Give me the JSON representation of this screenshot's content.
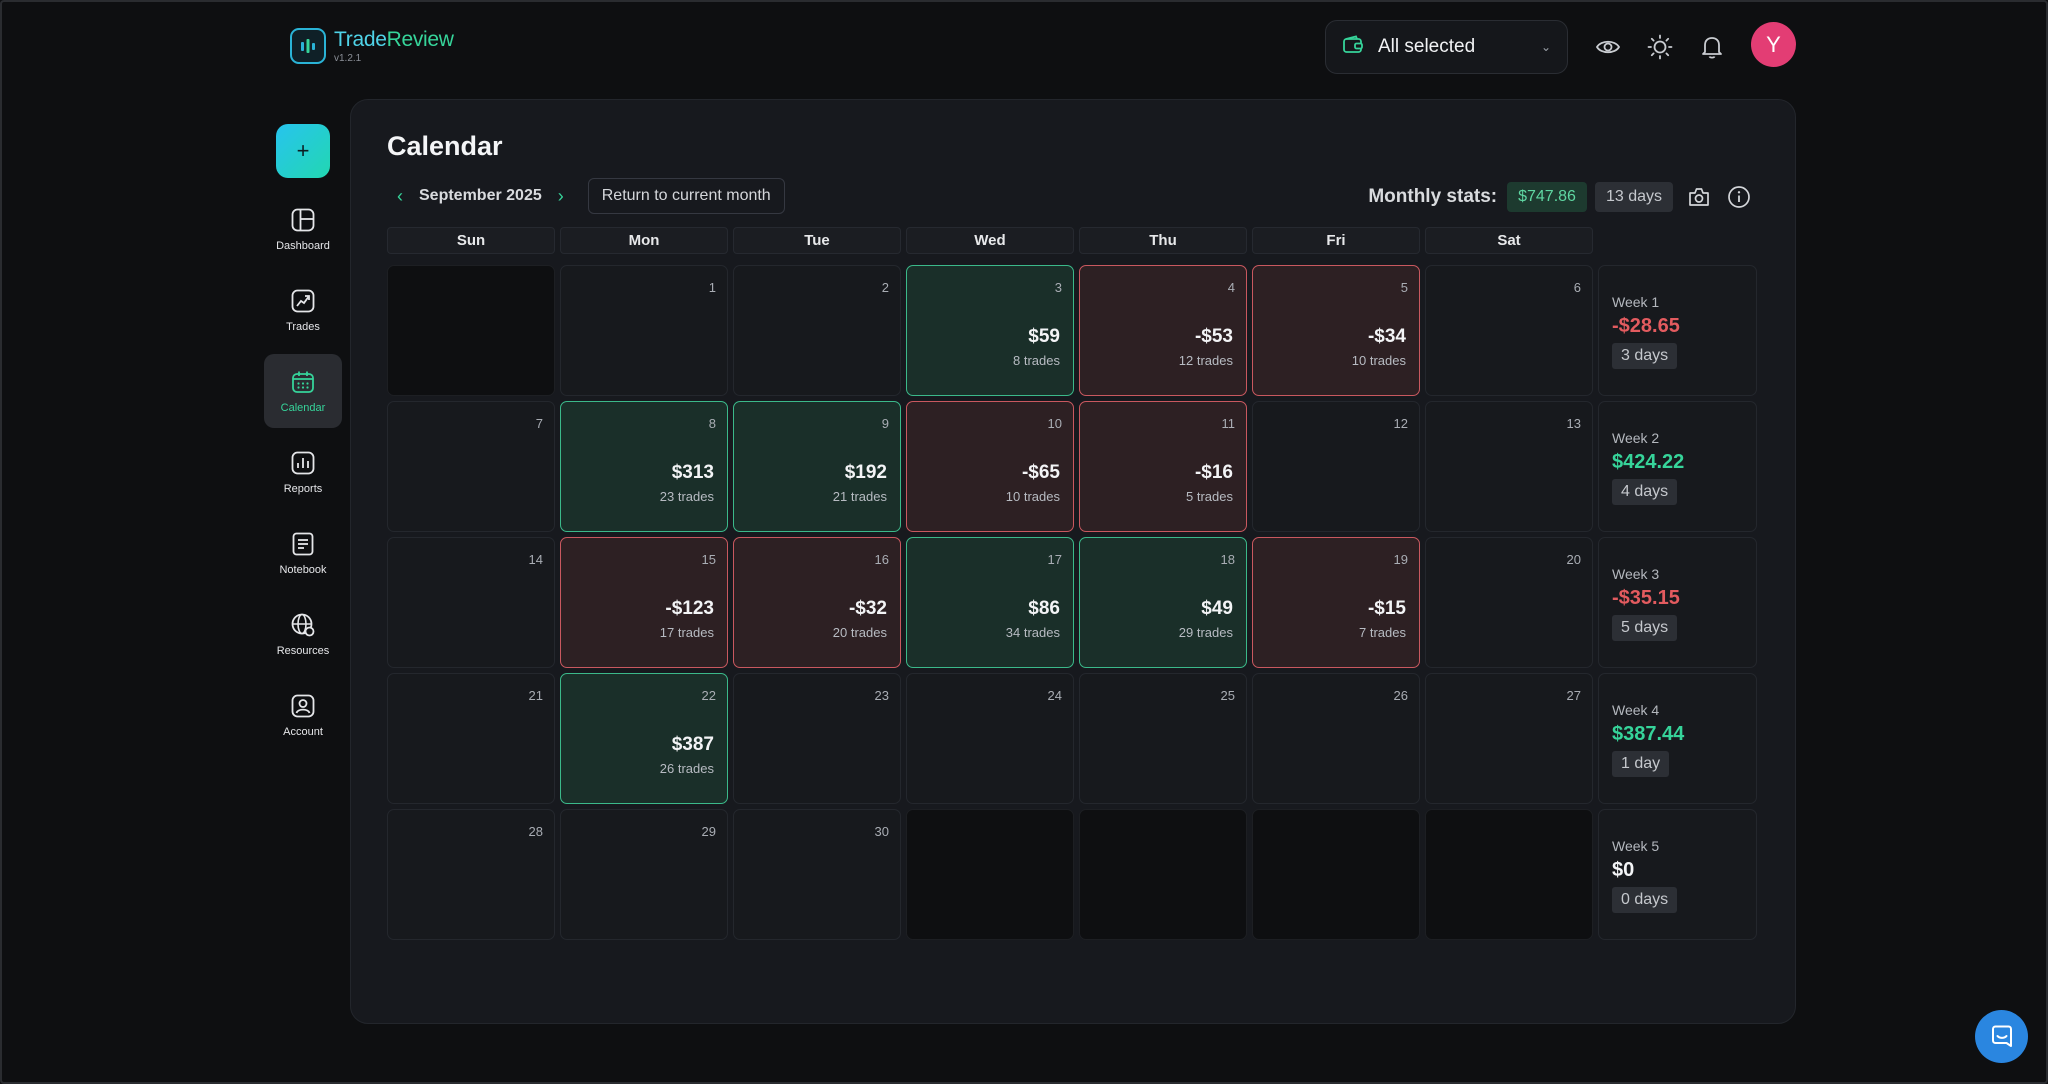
{
  "app": {
    "name_part1": "Trade",
    "name_part2": "Review",
    "version": "v1.2.1"
  },
  "header": {
    "account_select": "All selected",
    "avatar_initial": "Y"
  },
  "sidebar": {
    "new_label": "+",
    "items": [
      {
        "label": "Dashboard",
        "icon": "dashboard-icon"
      },
      {
        "label": "Trades",
        "icon": "trades-icon"
      },
      {
        "label": "Calendar",
        "icon": "calendar-icon",
        "active": true
      },
      {
        "label": "Reports",
        "icon": "reports-icon"
      },
      {
        "label": "Notebook",
        "icon": "notebook-icon"
      },
      {
        "label": "Resources",
        "icon": "resources-icon"
      },
      {
        "label": "Account",
        "icon": "account-icon"
      }
    ]
  },
  "calendar": {
    "title": "Calendar",
    "month": "September 2025",
    "return_label": "Return to current month",
    "monthly_stats_label": "Monthly stats:",
    "monthly_pnl": "$747.86",
    "monthly_days": "13 days",
    "days_of_week": [
      "Sun",
      "Mon",
      "Tue",
      "Wed",
      "Thu",
      "Fri",
      "Sat"
    ],
    "weeks": [
      {
        "days": [
          {
            "day": "",
            "type": "empty"
          },
          {
            "day": "1",
            "type": "neutral"
          },
          {
            "day": "2",
            "type": "neutral"
          },
          {
            "day": "3",
            "type": "green",
            "pnl": "$59",
            "trades": "8 trades"
          },
          {
            "day": "4",
            "type": "red",
            "pnl": "-$53",
            "trades": "12 trades"
          },
          {
            "day": "5",
            "type": "red",
            "pnl": "-$34",
            "trades": "10 trades"
          },
          {
            "day": "6",
            "type": "neutral"
          }
        ],
        "summary": {
          "label": "Week 1",
          "value": "-$28.65",
          "sign": "neg",
          "days": "3 days"
        }
      },
      {
        "days": [
          {
            "day": "7",
            "type": "neutral"
          },
          {
            "day": "8",
            "type": "green",
            "pnl": "$313",
            "trades": "23 trades"
          },
          {
            "day": "9",
            "type": "green",
            "pnl": "$192",
            "trades": "21 trades"
          },
          {
            "day": "10",
            "type": "red",
            "pnl": "-$65",
            "trades": "10 trades"
          },
          {
            "day": "11",
            "type": "red",
            "pnl": "-$16",
            "trades": "5 trades"
          },
          {
            "day": "12",
            "type": "neutral"
          },
          {
            "day": "13",
            "type": "neutral"
          }
        ],
        "summary": {
          "label": "Week 2",
          "value": "$424.22",
          "sign": "pos",
          "days": "4 days"
        }
      },
      {
        "days": [
          {
            "day": "14",
            "type": "neutral"
          },
          {
            "day": "15",
            "type": "red",
            "pnl": "-$123",
            "trades": "17 trades"
          },
          {
            "day": "16",
            "type": "red",
            "pnl": "-$32",
            "trades": "20 trades"
          },
          {
            "day": "17",
            "type": "green",
            "pnl": "$86",
            "trades": "34 trades"
          },
          {
            "day": "18",
            "type": "green",
            "pnl": "$49",
            "trades": "29 trades"
          },
          {
            "day": "19",
            "type": "red",
            "pnl": "-$15",
            "trades": "7 trades"
          },
          {
            "day": "20",
            "type": "neutral"
          }
        ],
        "summary": {
          "label": "Week 3",
          "value": "-$35.15",
          "sign": "neg",
          "days": "5 days"
        }
      },
      {
        "days": [
          {
            "day": "21",
            "type": "neutral"
          },
          {
            "day": "22",
            "type": "green",
            "pnl": "$387",
            "trades": "26 trades"
          },
          {
            "day": "23",
            "type": "neutral"
          },
          {
            "day": "24",
            "type": "neutral"
          },
          {
            "day": "25",
            "type": "neutral"
          },
          {
            "day": "26",
            "type": "neutral"
          },
          {
            "day": "27",
            "type": "neutral"
          }
        ],
        "summary": {
          "label": "Week 4",
          "value": "$387.44",
          "sign": "pos",
          "days": "1 day"
        }
      },
      {
        "days": [
          {
            "day": "28",
            "type": "neutral"
          },
          {
            "day": "29",
            "type": "neutral"
          },
          {
            "day": "30",
            "type": "neutral"
          },
          {
            "day": "",
            "type": "empty"
          },
          {
            "day": "",
            "type": "empty"
          },
          {
            "day": "",
            "type": "empty"
          },
          {
            "day": "",
            "type": "empty"
          }
        ],
        "summary": {
          "label": "Week 5",
          "value": "$0",
          "sign": "zero",
          "days": "0 days"
        }
      }
    ]
  },
  "colors": {
    "accent_green": "#36d49a",
    "loss_red": "#e35b5f",
    "win_cell_bg": "#1a2f29",
    "loss_cell_bg": "#2d2023",
    "avatar": "#e33d74",
    "chat_button": "#2a86e0"
  }
}
